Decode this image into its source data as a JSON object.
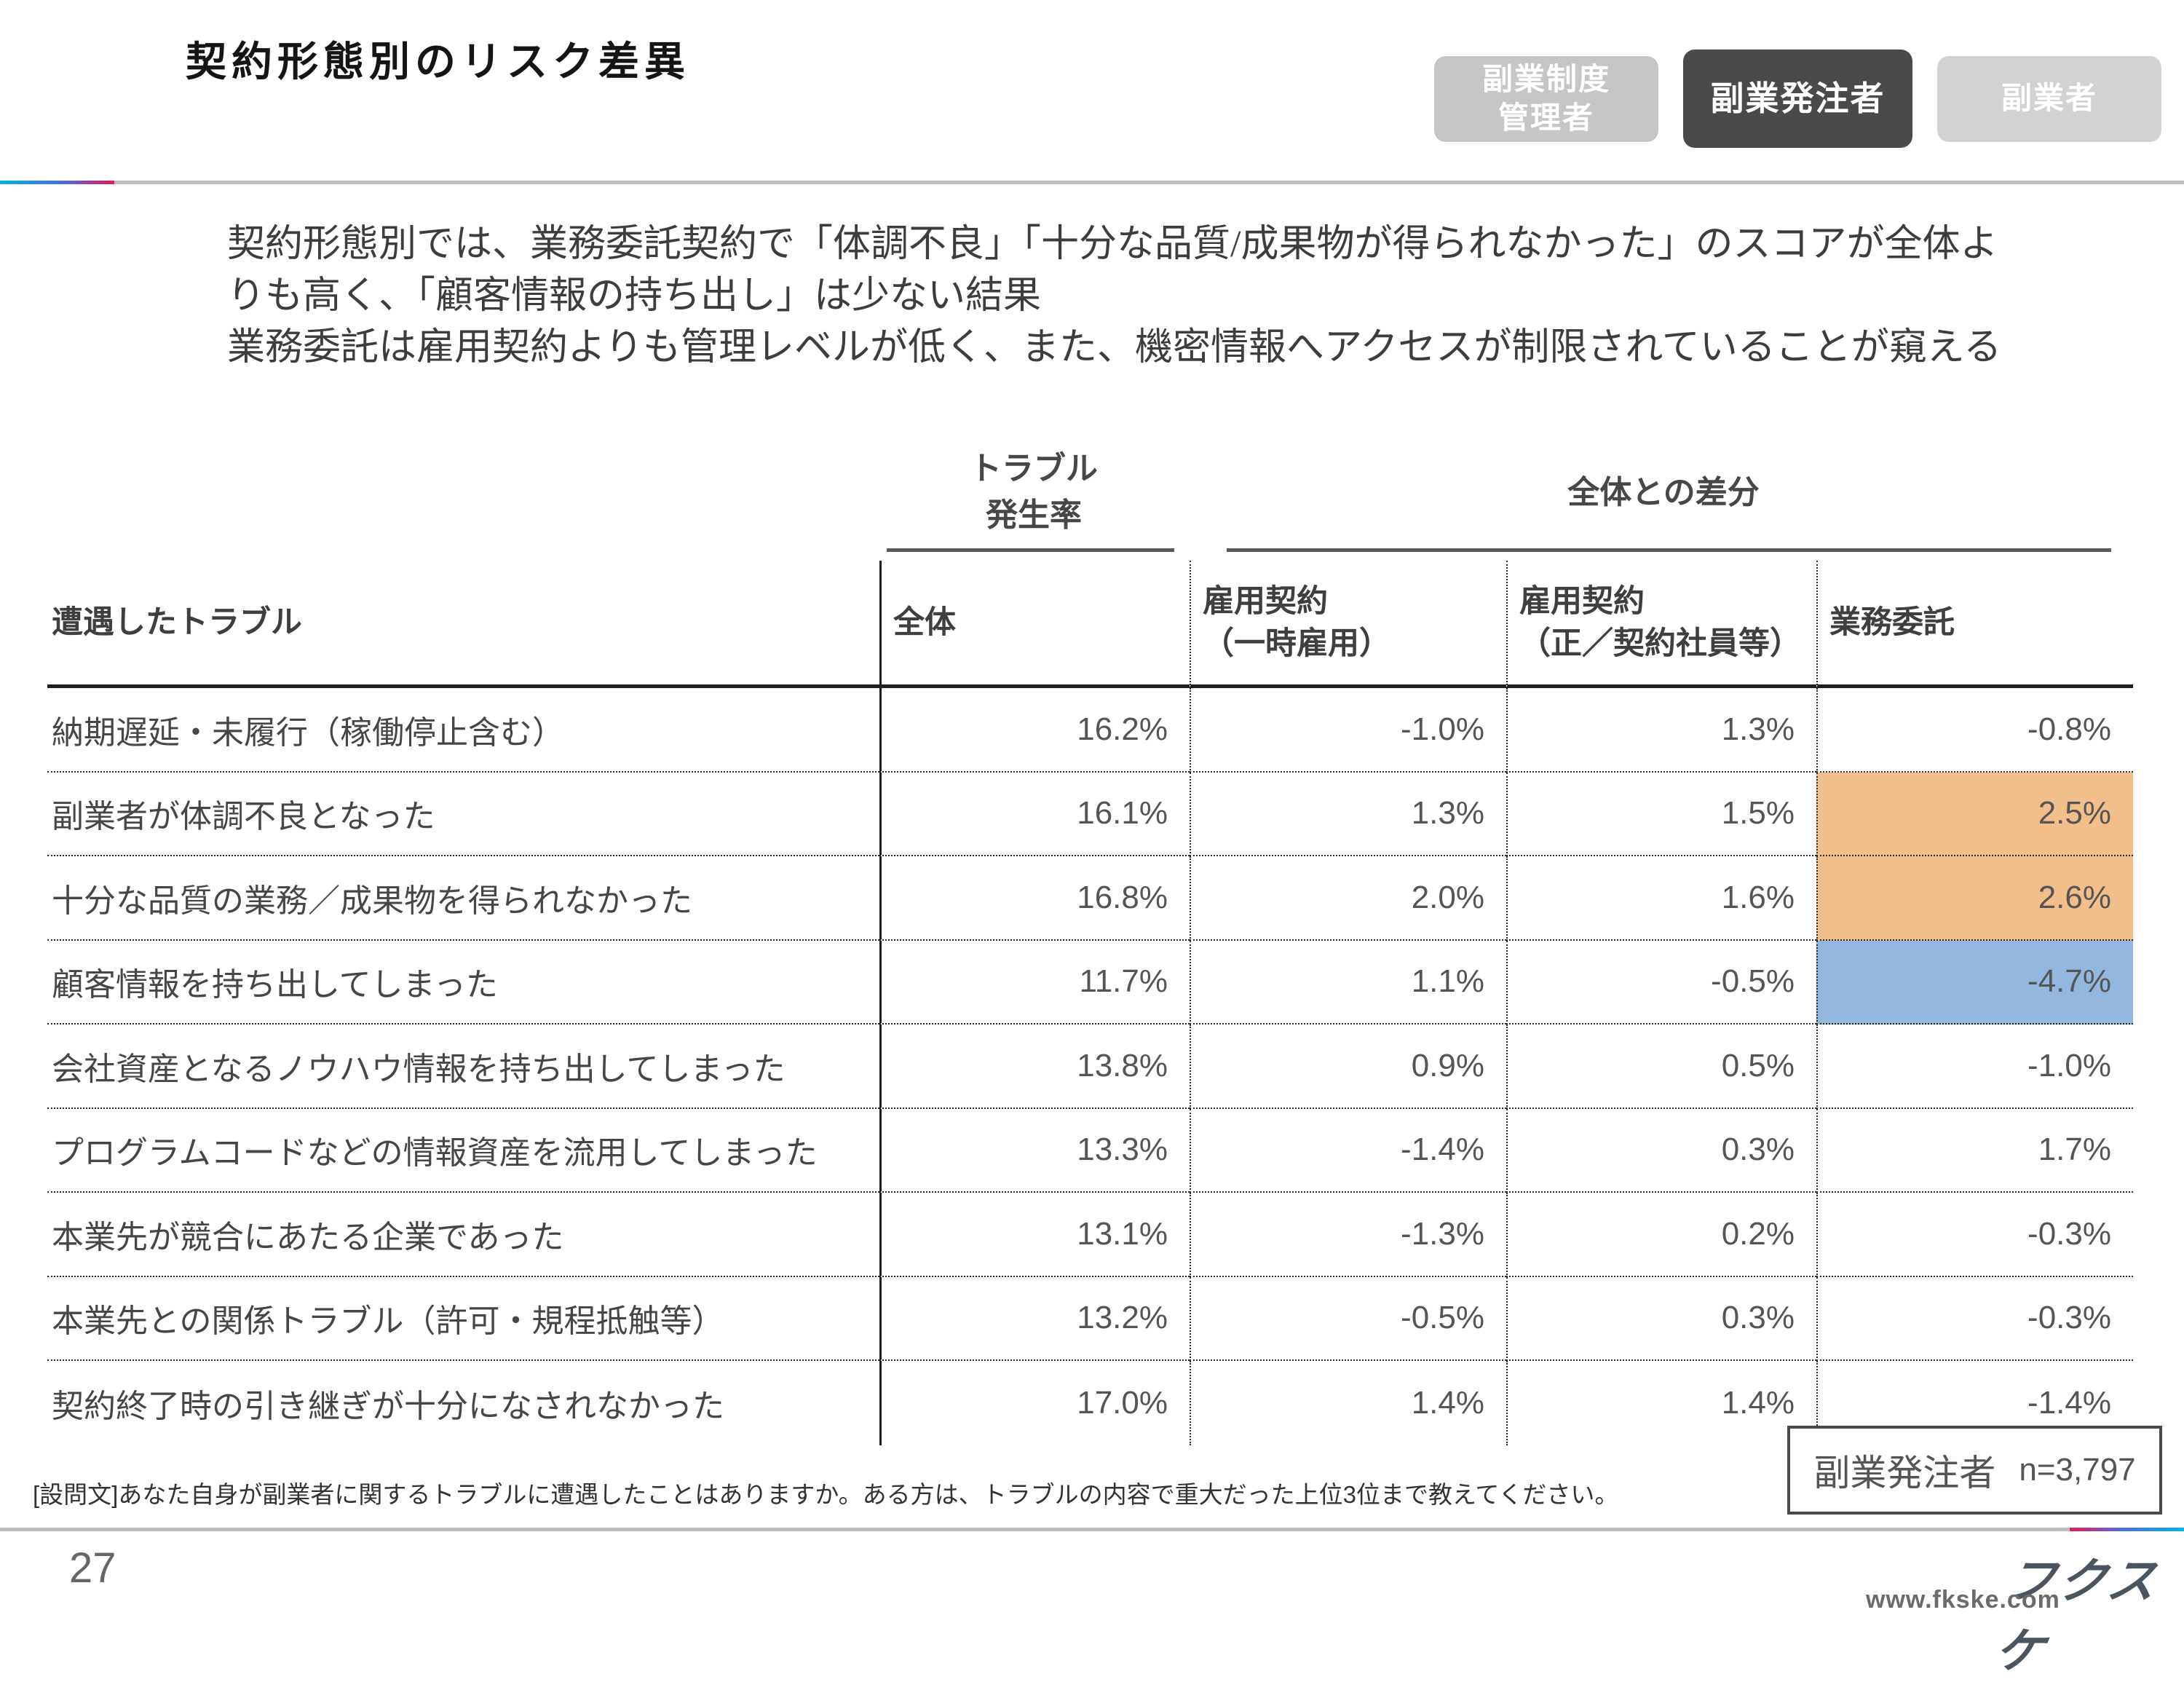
{
  "page": {
    "title": "契約形態別のリスク差異",
    "page_number": "27",
    "site_url": "www.fkske.com",
    "logo_text": "フクスケ"
  },
  "tabs": [
    {
      "label": "副業制度\n管理者",
      "active": false,
      "bg": "#c6c6c6"
    },
    {
      "label": "副業発注者",
      "active": true,
      "bg": "#4a4a4a"
    },
    {
      "label": "副業者",
      "active": false,
      "bg": "#d2d2d2"
    }
  ],
  "summary": "契約形態別では、業務委託契約で「体調不良」「十分な品質/成果物が得られなかった」のスコアが全体よ\nりも高く、「顧客情報の持ち出し」は少ない結果\n業務委託は雇用契約よりも管理レベルが低く、また、機密情報へアクセスが制限されていることが窺える",
  "group_headers": {
    "rate": "トラブル\n発生率",
    "diff": "全体との差分"
  },
  "table": {
    "row_header": "遭遇したトラブル",
    "columns": [
      "全体",
      "雇用契約\n（一時雇用）",
      "雇用契約\n（正／契約社員等）",
      "業務委託"
    ],
    "highlight_colors": {
      "orange": "#F2BF8B",
      "blue": "#93B7DF"
    },
    "rows": [
      {
        "label": "納期遅延・未履行（稼働停止含む）",
        "values": [
          "16.2%",
          "-1.0%",
          "1.3%",
          "-0.8%"
        ],
        "hl": [
          null,
          null,
          null,
          null
        ]
      },
      {
        "label": "副業者が体調不良となった",
        "values": [
          "16.1%",
          "1.3%",
          "1.5%",
          "2.5%"
        ],
        "hl": [
          null,
          null,
          null,
          "orange"
        ]
      },
      {
        "label": "十分な品質の業務／成果物を得られなかった",
        "values": [
          "16.8%",
          "2.0%",
          "1.6%",
          "2.6%"
        ],
        "hl": [
          null,
          null,
          null,
          "orange"
        ]
      },
      {
        "label": "顧客情報を持ち出してしまった",
        "values": [
          "11.7%",
          "1.1%",
          "-0.5%",
          "-4.7%"
        ],
        "hl": [
          null,
          null,
          null,
          "blue"
        ]
      },
      {
        "label": "会社資産となるノウハウ情報を持ち出してしまった",
        "values": [
          "13.8%",
          "0.9%",
          "0.5%",
          "-1.0%"
        ],
        "hl": [
          null,
          null,
          null,
          null
        ]
      },
      {
        "label": "プログラムコードなどの情報資産を流用してしまった",
        "values": [
          "13.3%",
          "-1.4%",
          "0.3%",
          "1.7%"
        ],
        "hl": [
          null,
          null,
          null,
          null
        ]
      },
      {
        "label": "本業先が競合にあたる企業であった",
        "values": [
          "13.1%",
          "-1.3%",
          "0.2%",
          "-0.3%"
        ],
        "hl": [
          null,
          null,
          null,
          null
        ]
      },
      {
        "label": "本業先との関係トラブル（許可・規程抵触等）",
        "values": [
          "13.2%",
          "-0.5%",
          "0.3%",
          "-0.3%"
        ],
        "hl": [
          null,
          null,
          null,
          null
        ]
      },
      {
        "label": "契約終了時の引き継ぎが十分になされなかった",
        "values": [
          "17.0%",
          "1.4%",
          "1.4%",
          "-1.4%"
        ],
        "hl": [
          null,
          null,
          null,
          null
        ]
      }
    ]
  },
  "sample_box": {
    "who": "副業発注者",
    "n": "n=3,797"
  },
  "footnote": "[設問文]あなた自身が副業者に関するトラブルに遭遇したことはありますか。ある方は、トラブルの内容で重大だった上位3位まで教えてください。",
  "chart_data": {
    "type": "table",
    "title": "契約形態別のリスク差異",
    "columns": [
      "トラブル発生率 全体",
      "全体との差分 雇用契約（一時雇用）",
      "全体との差分 雇用契約（正／契約社員等）",
      "全体との差分 業務委託"
    ],
    "rows": [
      {
        "label": "納期遅延・未履行（稼働停止含む）",
        "values": [
          16.2,
          -1.0,
          1.3,
          -0.8
        ]
      },
      {
        "label": "副業者が体調不良となった",
        "values": [
          16.1,
          1.3,
          1.5,
          2.5
        ]
      },
      {
        "label": "十分な品質の業務／成果物を得られなかった",
        "values": [
          16.8,
          2.0,
          1.6,
          2.6
        ]
      },
      {
        "label": "顧客情報を持ち出してしまった",
        "values": [
          11.7,
          1.1,
          -0.5,
          -4.7
        ]
      },
      {
        "label": "会社資産となるノウハウ情報を持ち出してしまった",
        "values": [
          13.8,
          0.9,
          0.5,
          -1.0
        ]
      },
      {
        "label": "プログラムコードなどの情報資産を流用してしまった",
        "values": [
          13.3,
          -1.4,
          0.3,
          1.7
        ]
      },
      {
        "label": "本業先が競合にあたる企業であった",
        "values": [
          13.1,
          -1.3,
          0.2,
          -0.3
        ]
      },
      {
        "label": "本業先との関係トラブル（許可・規程抵触等）",
        "values": [
          13.2,
          -0.5,
          0.3,
          -0.3
        ]
      },
      {
        "label": "契約終了時の引き継ぎが十分になされなかった",
        "values": [
          17.0,
          1.4,
          1.4,
          -1.4
        ]
      }
    ],
    "unit": "%",
    "sample": "副業発注者 n=3,797"
  }
}
